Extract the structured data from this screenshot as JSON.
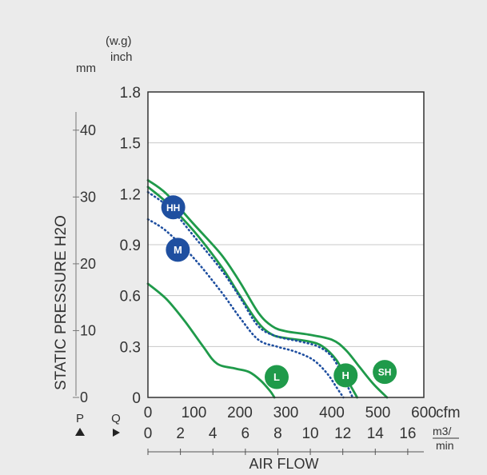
{
  "chart_data": {
    "type": "line",
    "xlabel": "AIR FLOW",
    "ylabel": "STATIC PRESSURE H2O",
    "y_unit_inch": "inch",
    "y_unit_inch_top": "(w.g)",
    "y_unit_mm": "mm",
    "x_unit_cfm": "cfm",
    "x_unit_m3_top": "m3/",
    "x_unit_m3_bottom": "min",
    "axis_marker_p": "P",
    "axis_marker_q": "Q",
    "xlim_cfm": [
      0,
      600
    ],
    "ylim_inch": [
      0,
      1.8
    ],
    "xticks_cfm": [
      "0",
      "100",
      "200",
      "300",
      "400",
      "500",
      "600"
    ],
    "xticks_m3min": [
      "0",
      "2",
      "4",
      "6",
      "8",
      "10",
      "12",
      "14",
      "16"
    ],
    "yticks_inch": [
      "0",
      "0.3",
      "0.6",
      "0.9",
      "1.2",
      "1.5",
      "1.8"
    ],
    "yticks_mm": [
      "0",
      "10",
      "20",
      "30",
      "40"
    ],
    "grid": true,
    "series": [
      {
        "name": "SH",
        "color": "#1f9a4a",
        "style": "solid",
        "label_at": [
          515,
          0.15
        ],
        "points": [
          [
            0,
            1.28
          ],
          [
            40,
            1.2
          ],
          [
            100,
            1.02
          ],
          [
            160,
            0.84
          ],
          [
            200,
            0.68
          ],
          [
            240,
            0.5
          ],
          [
            270,
            0.42
          ],
          [
            300,
            0.39
          ],
          [
            350,
            0.37
          ],
          [
            400,
            0.34
          ],
          [
            430,
            0.28
          ],
          [
            460,
            0.18
          ],
          [
            490,
            0.08
          ],
          [
            520,
            0
          ]
        ]
      },
      {
        "name": "H",
        "color": "#1f9a4a",
        "style": "solid",
        "label_at": [
          430,
          0.13
        ],
        "points": [
          [
            0,
            1.24
          ],
          [
            40,
            1.15
          ],
          [
            100,
            0.98
          ],
          [
            160,
            0.77
          ],
          [
            200,
            0.6
          ],
          [
            240,
            0.44
          ],
          [
            270,
            0.37
          ],
          [
            300,
            0.35
          ],
          [
            350,
            0.33
          ],
          [
            380,
            0.3
          ],
          [
            410,
            0.22
          ],
          [
            430,
            0.12
          ],
          [
            455,
            0
          ]
        ]
      },
      {
        "name": "HH",
        "color": "#1f4fa0",
        "style": "dotted",
        "label_at": [
          55,
          1.12
        ],
        "points": [
          [
            0,
            1.21
          ],
          [
            50,
            1.11
          ],
          [
            100,
            0.95
          ],
          [
            160,
            0.75
          ],
          [
            200,
            0.59
          ],
          [
            240,
            0.42
          ],
          [
            280,
            0.36
          ],
          [
            330,
            0.33
          ],
          [
            370,
            0.3
          ],
          [
            400,
            0.24
          ],
          [
            425,
            0.12
          ],
          [
            445,
            0
          ]
        ]
      },
      {
        "name": "M",
        "color": "#1f4fa0",
        "style": "dotted",
        "label_at": [
          65,
          0.87
        ],
        "points": [
          [
            0,
            1.05
          ],
          [
            40,
            0.98
          ],
          [
            100,
            0.82
          ],
          [
            160,
            0.62
          ],
          [
            200,
            0.47
          ],
          [
            240,
            0.34
          ],
          [
            280,
            0.3
          ],
          [
            320,
            0.27
          ],
          [
            360,
            0.22
          ],
          [
            390,
            0.14
          ],
          [
            410,
            0.06
          ],
          [
            425,
            0
          ]
        ]
      },
      {
        "name": "L",
        "color": "#1f9a4a",
        "style": "solid",
        "label_at": [
          280,
          0.12
        ],
        "points": [
          [
            0,
            0.67
          ],
          [
            40,
            0.58
          ],
          [
            80,
            0.45
          ],
          [
            120,
            0.3
          ],
          [
            150,
            0.2
          ],
          [
            190,
            0.17
          ],
          [
            220,
            0.15
          ],
          [
            245,
            0.1
          ],
          [
            265,
            0.04
          ],
          [
            275,
            0
          ]
        ]
      }
    ]
  }
}
